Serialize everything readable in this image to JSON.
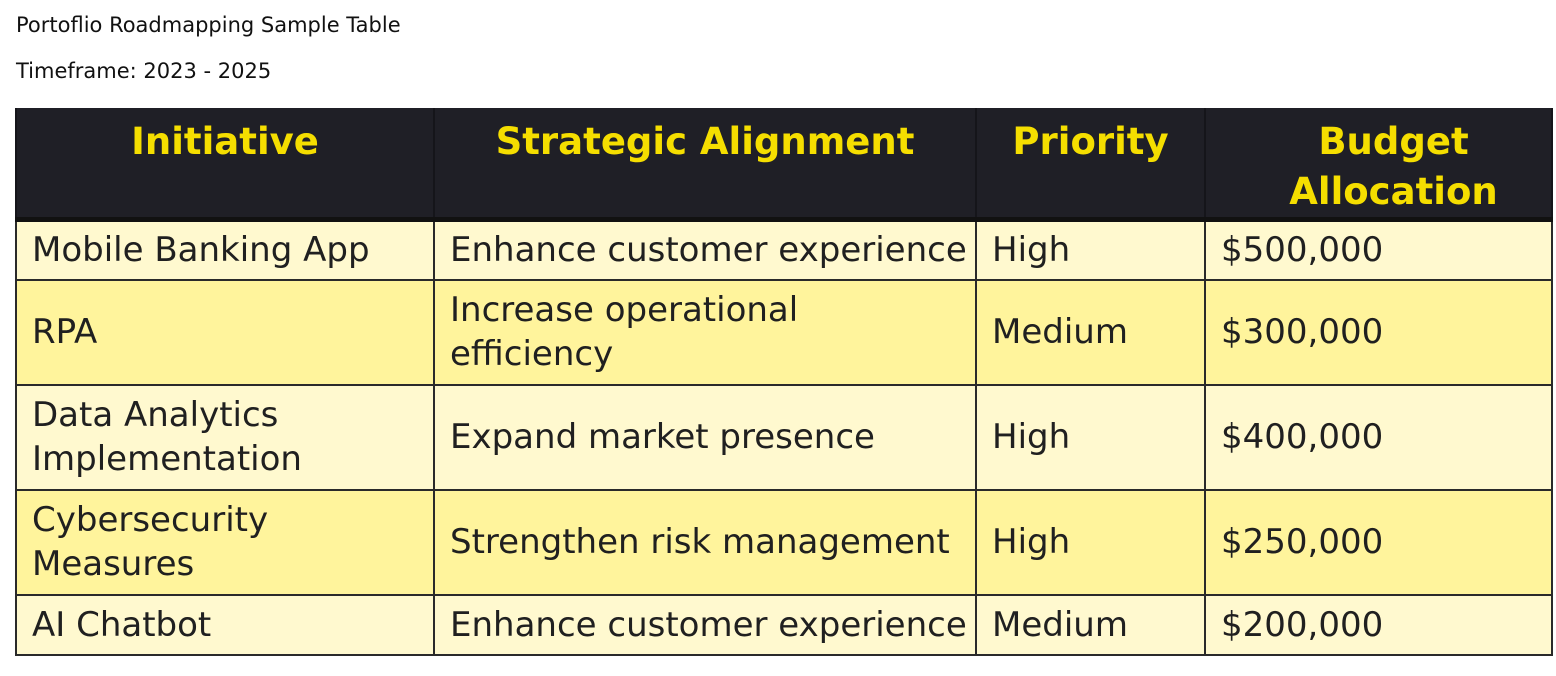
{
  "document": {
    "title": "Portoflio Roadmapping Sample Table",
    "timeframe": "Timeframe: 2023 - 2025"
  },
  "table": {
    "headers": {
      "initiative": "Initiative",
      "alignment": "Strategic Alignment",
      "priority": "Priority",
      "budget": "Budget Allocation"
    },
    "rows": [
      {
        "initiative": "Mobile Banking App",
        "alignment": "Enhance customer experience",
        "priority": "High",
        "budget": "$500,000"
      },
      {
        "initiative": "RPA",
        "alignment": "Increase operational efficiency",
        "priority": "Medium",
        "budget": "$300,000"
      },
      {
        "initiative": "Data Analytics Implementation",
        "alignment": "Expand market presence",
        "priority": "High",
        "budget": "$400,000"
      },
      {
        "initiative": "Cybersecurity Measures",
        "alignment": "Strengthen risk management",
        "priority": "High",
        "budget": "$250,000"
      },
      {
        "initiative": "AI Chatbot",
        "alignment": "Enhance customer experience",
        "priority": "Medium",
        "budget": "$200,000"
      }
    ]
  },
  "colors": {
    "header_background": "#1f1f26",
    "header_text": "#f5de00",
    "row_light": "#fff9cf",
    "row_dark": "#fff49c",
    "grid_line": "#2a2a2a"
  }
}
